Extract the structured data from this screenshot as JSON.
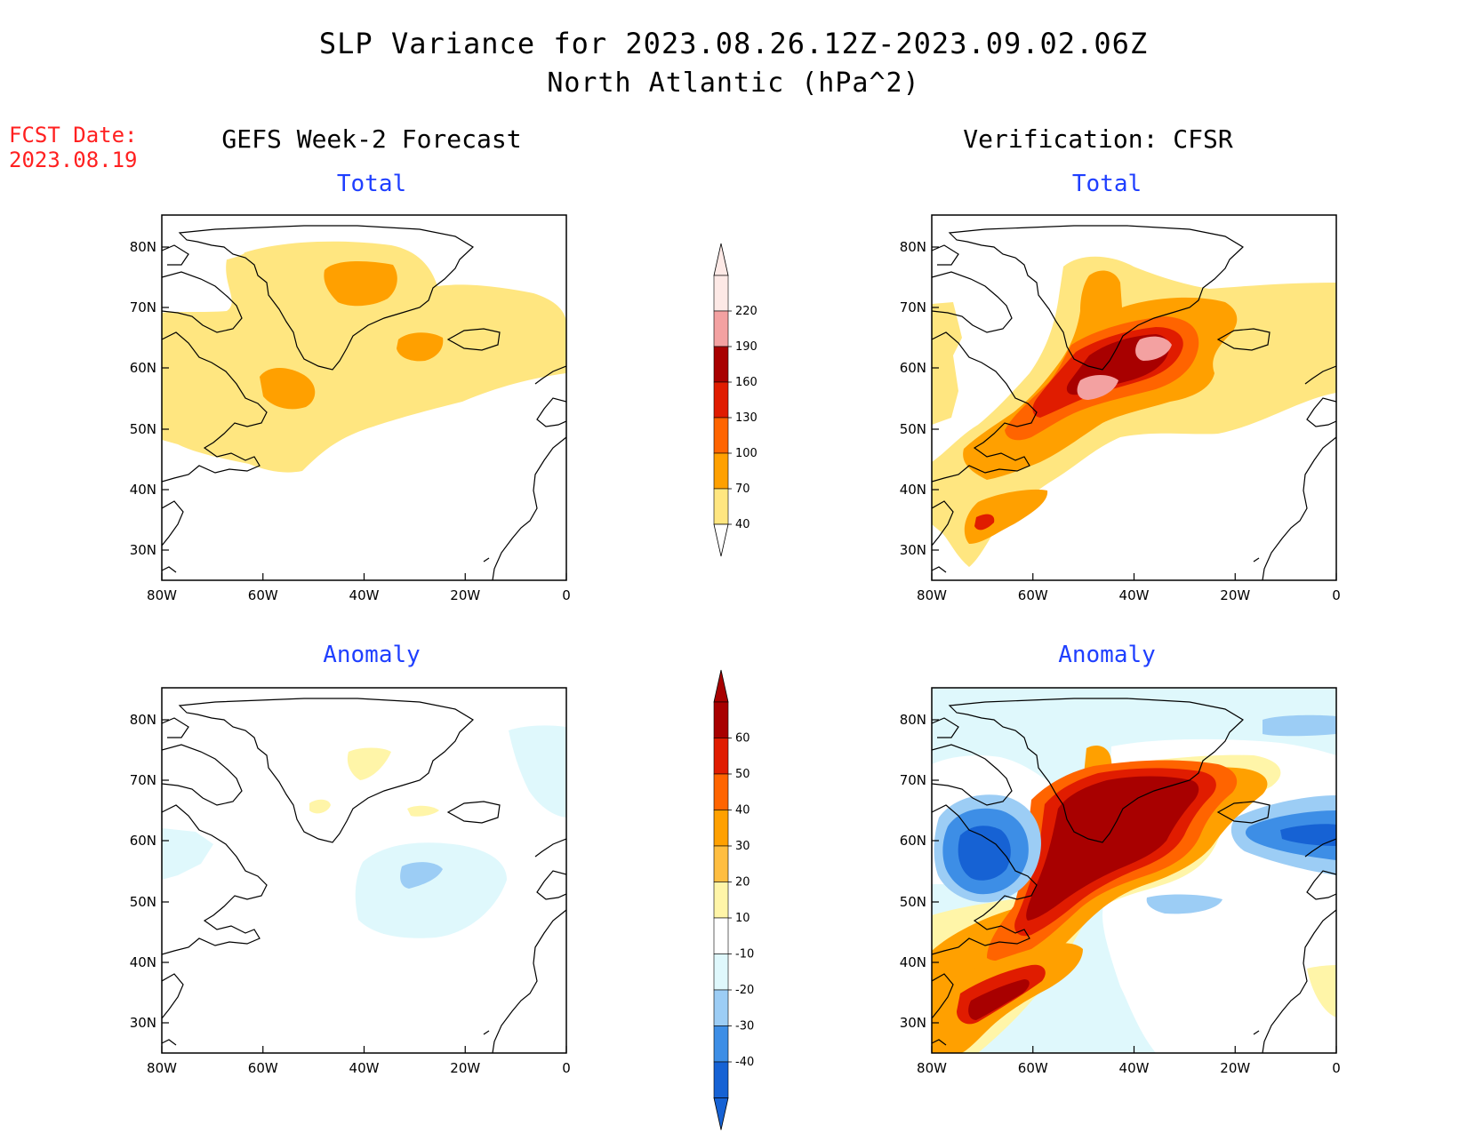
{
  "titles": {
    "main": "SLP Variance for 2023.08.26.12Z-2023.09.02.06Z",
    "sub": "North Atlantic (hPa^2)",
    "fcst_line1": "FCST Date:",
    "fcst_line2": "2023.08.19",
    "left_column": "GEFS Week-2 Forecast",
    "right_column": "Verification: CFSR"
  },
  "panels": {
    "tl": "Total",
    "tr": "Total",
    "bl": "Anomaly",
    "br": "Anomaly"
  },
  "axes": {
    "lat_labels": [
      "80N",
      "70N",
      "60N",
      "50N",
      "40N",
      "30N"
    ],
    "lon_labels": [
      "80W",
      "60W",
      "40W",
      "20W",
      "0"
    ]
  },
  "colorbars": {
    "total": {
      "levels": [
        "220",
        "190",
        "160",
        "130",
        "100",
        "70",
        "40"
      ],
      "colors": [
        "#fde9e6",
        "#f3a1a1",
        "#a80000",
        "#e01c00",
        "#ff6400",
        "#ffa000",
        "#ffe680"
      ]
    },
    "anomaly": {
      "levels": [
        "60",
        "50",
        "40",
        "30",
        "20",
        "10",
        "-10",
        "-20",
        "-30",
        "-40"
      ],
      "colors": [
        "#a80000",
        "#e01c00",
        "#ff6400",
        "#ffa000",
        "#ffbe40",
        "#fff5a8",
        "#ffffff",
        "#dff8fc",
        "#9ccdf5",
        "#3d8ee6",
        "#1662d4"
      ]
    }
  }
}
